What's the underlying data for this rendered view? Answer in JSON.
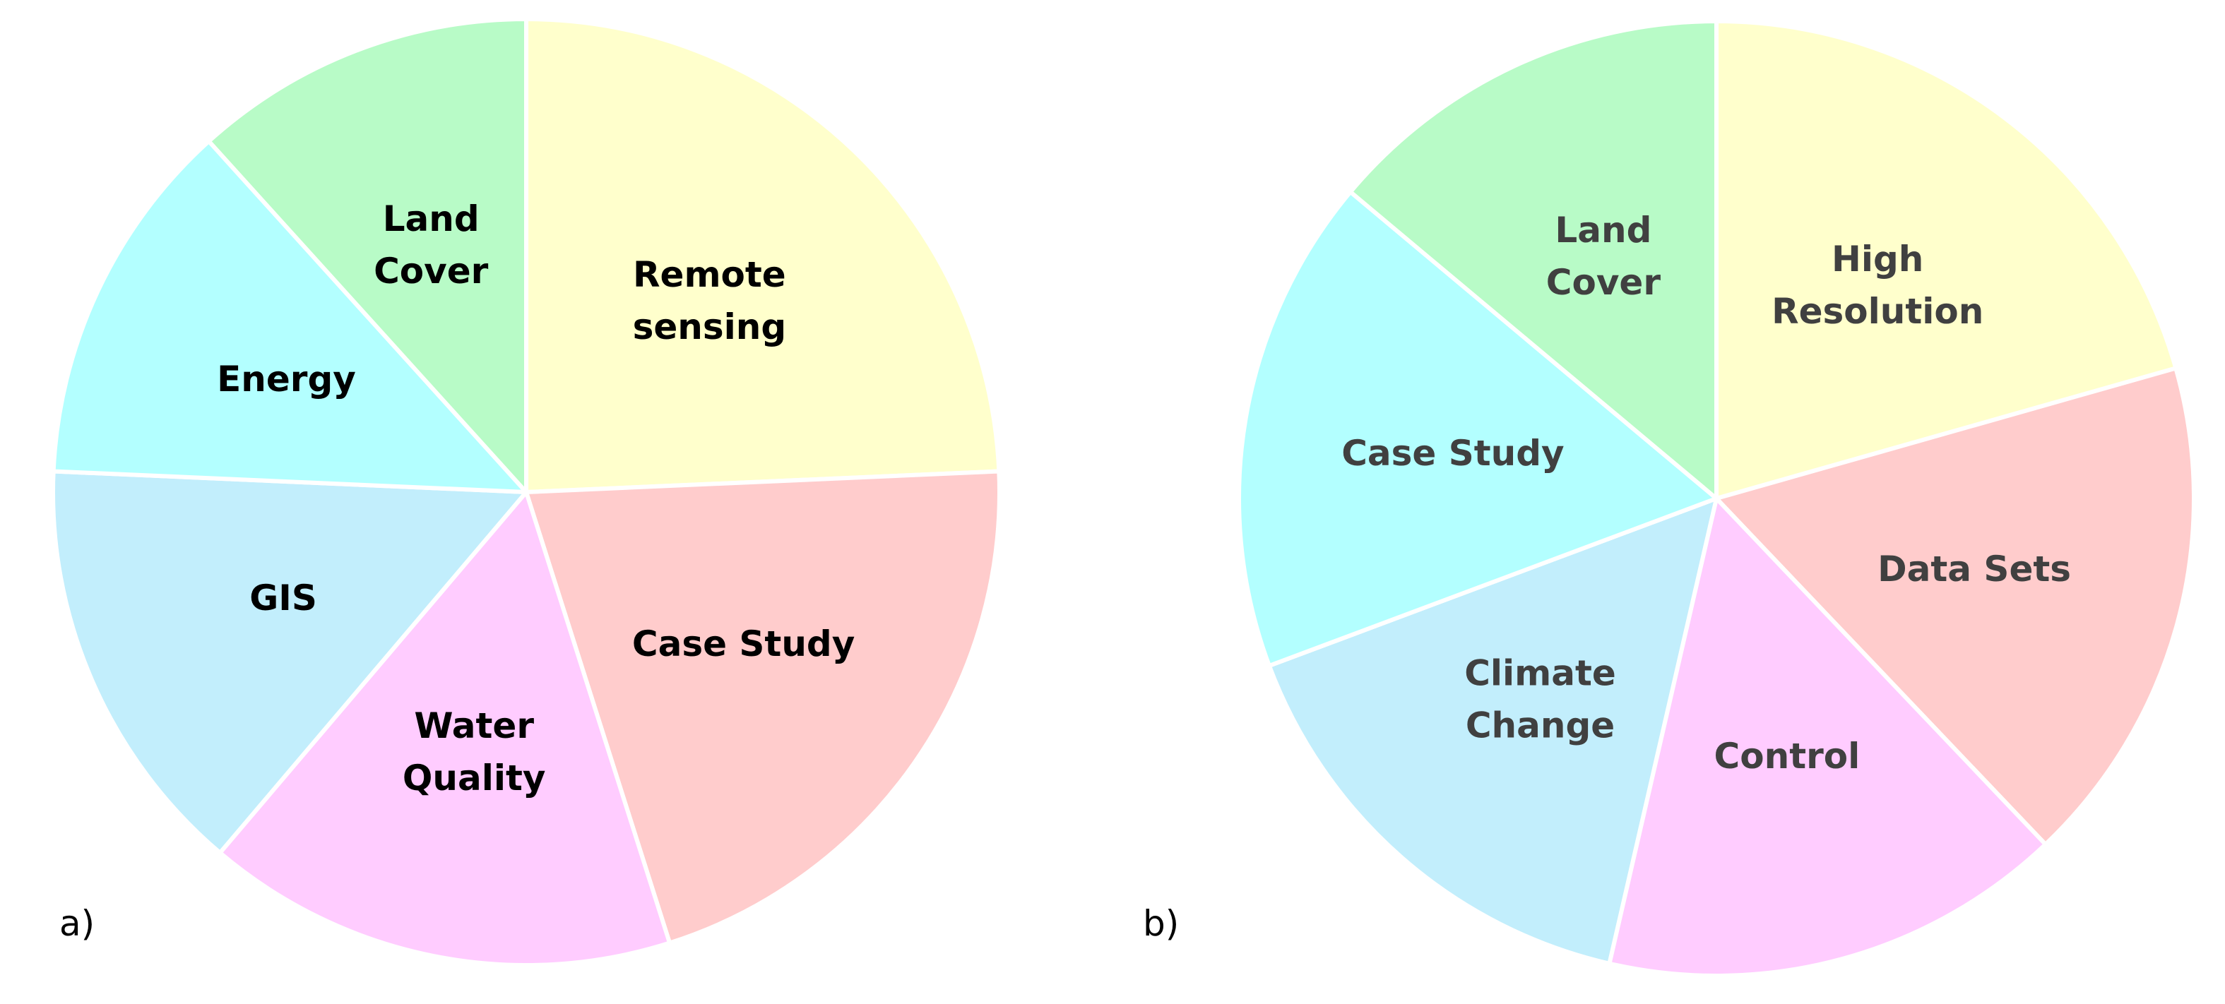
{
  "chart_data": [
    {
      "type": "pie",
      "panel_label": "a)",
      "label_color": "#000000",
      "slices": [
        {
          "label": [
            "Remote",
            "sensing"
          ],
          "value": 24.3,
          "color": "#FFFFCC"
        },
        {
          "label": [
            "Case Study"
          ],
          "value": 20.8,
          "color": "#FFCCCC"
        },
        {
          "label": [
            "Water",
            "Quality"
          ],
          "value": 16.1,
          "color": "#FFCCFF"
        },
        {
          "label": [
            "GIS"
          ],
          "value": 14.5,
          "color": "#C2EEFC"
        },
        {
          "label": [
            "Energy"
          ],
          "value": 12.6,
          "color": "#B3FFFF"
        },
        {
          "label": [
            "Land",
            "Cover"
          ],
          "value": 11.7,
          "color": "#B8FBC7"
        }
      ]
    },
    {
      "type": "pie",
      "panel_label": "b)",
      "label_color": "#404040",
      "slices": [
        {
          "label": [
            "High",
            "Resolution"
          ],
          "value": 20.6,
          "color": "#FFFFCC"
        },
        {
          "label": [
            "Data Sets"
          ],
          "value": 17.3,
          "color": "#FFCCCC"
        },
        {
          "label": [
            "Control"
          ],
          "value": 15.7,
          "color": "#FFCCFF"
        },
        {
          "label": [
            "Climate",
            "Change"
          ],
          "value": 15.7,
          "color": "#C2EEFC"
        },
        {
          "label": [
            "Case Study"
          ],
          "value": 16.8,
          "color": "#B3FFFF"
        },
        {
          "label": [
            "Land",
            "Cover"
          ],
          "value": 13.9,
          "color": "#B8FBC7"
        }
      ]
    }
  ]
}
